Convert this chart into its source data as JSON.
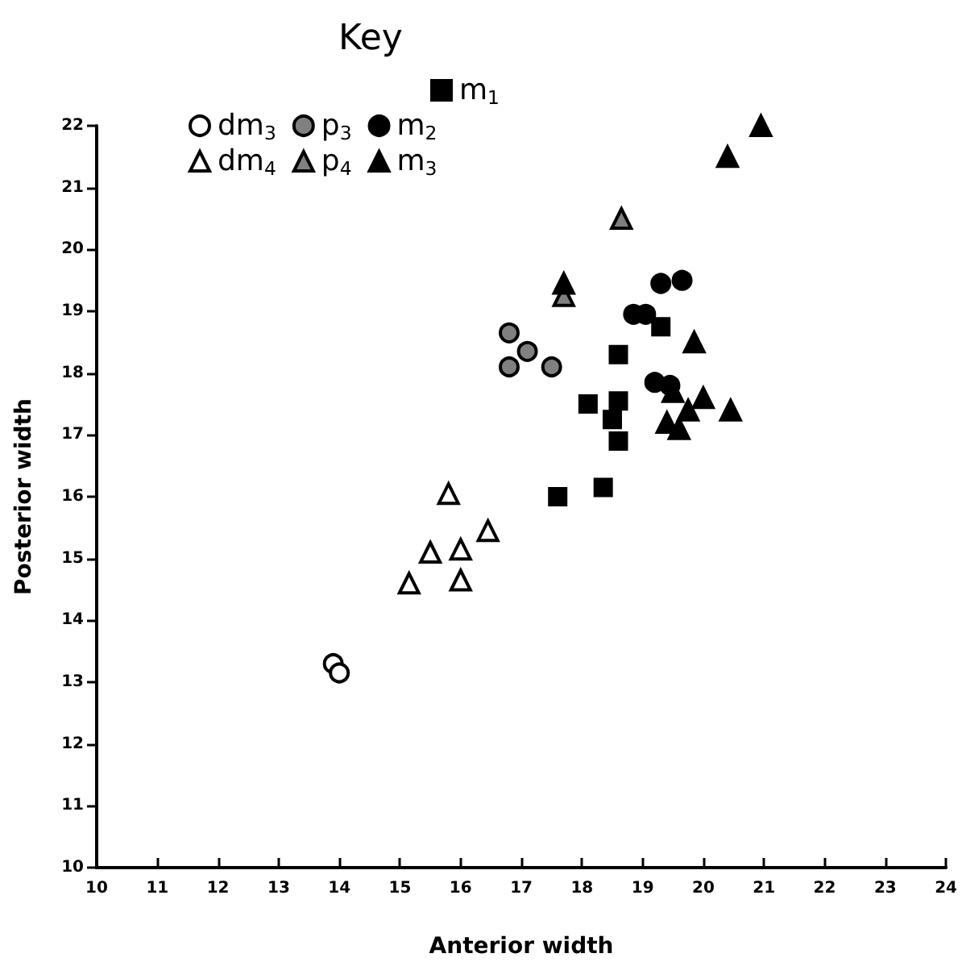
{
  "chart_data": {
    "type": "scatter",
    "legend_title": "Key",
    "xlabel": "Anterior width",
    "ylabel": "Posterior width",
    "xlim": [
      10,
      24
    ],
    "xticks": [
      10,
      11,
      12,
      13,
      14,
      15,
      16,
      17,
      18,
      19,
      20,
      21,
      22,
      23,
      24
    ],
    "ylim": [
      10,
      22
    ],
    "yticks": [
      10,
      11,
      12,
      13,
      14,
      15,
      16,
      17,
      18,
      19,
      20,
      21,
      22
    ],
    "grid": false,
    "legend": "top left",
    "series": [
      {
        "name": "m$_{1}$",
        "marker": "square",
        "color": "#000000",
        "x": [
          19.3,
          18.6,
          18.1,
          18.6,
          18.5,
          18.6,
          17.6,
          18.35
        ],
        "values": [
          18.75,
          18.3,
          17.5,
          17.55,
          17.25,
          16.9,
          16.0,
          16.15
        ]
      },
      {
        "name": "dm$_{3}$",
        "marker": "circle",
        "color": "#ffffff",
        "x": [
          13.9,
          14.0
        ],
        "values": [
          13.3,
          13.15
        ]
      },
      {
        "name": "p$_{3}$",
        "marker": "circle",
        "color": "#808080",
        "x": [
          16.8,
          17.1,
          16.8,
          17.5
        ],
        "values": [
          18.65,
          18.35,
          18.1,
          18.1
        ]
      },
      {
        "name": "m$_{2}$",
        "marker": "circle",
        "color": "#000000",
        "x": [
          19.3,
          19.65,
          18.85,
          19.05,
          19.2,
          19.45
        ],
        "values": [
          19.45,
          19.5,
          18.95,
          18.95,
          17.85,
          17.8
        ]
      },
      {
        "name": "dm$_{4}$",
        "marker": "triangle",
        "color": "#ffffff",
        "x": [
          15.8,
          16.45,
          15.5,
          16.0,
          15.15,
          16.0
        ],
        "values": [
          16.05,
          15.45,
          15.1,
          15.15,
          14.6,
          14.65
        ]
      },
      {
        "name": "p$_{4}$",
        "marker": "triangle",
        "color": "#808080",
        "x": [
          17.7,
          18.65
        ],
        "values": [
          19.25,
          20.5
        ]
      },
      {
        "name": "m$_{3}$",
        "marker": "triangle",
        "color": "#000000",
        "x": [
          20.95,
          20.4,
          19.85,
          19.5,
          20.0,
          19.75,
          20.45,
          19.4,
          19.6,
          17.7
        ],
        "values": [
          22.0,
          21.5,
          18.5,
          17.7,
          17.6,
          17.4,
          17.4,
          17.2,
          17.1,
          19.45
        ]
      }
    ]
  }
}
